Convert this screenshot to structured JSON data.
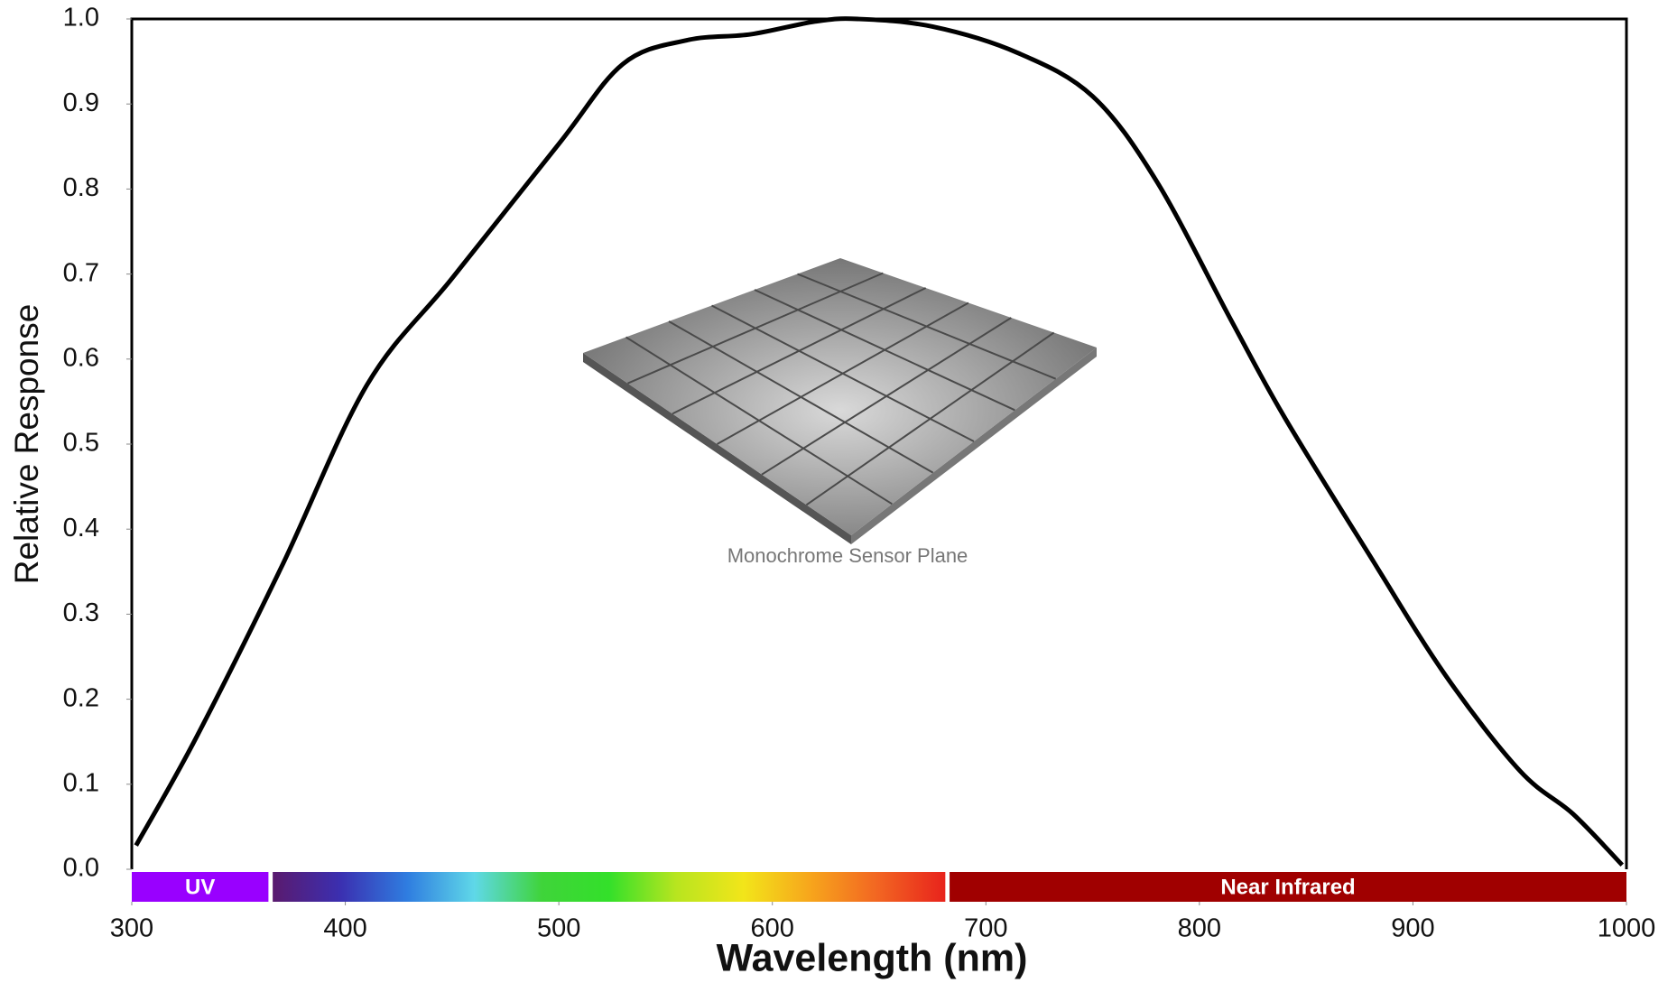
{
  "chart_data": {
    "type": "line",
    "x_label": "Wavelength (nm)",
    "y_label": "Relative Response",
    "annotation": "Monochrome Sensor Plane",
    "x": [
      302,
      330,
      370,
      410,
      450,
      500,
      530,
      560,
      590,
      620,
      640,
      675,
      715,
      750,
      780,
      815,
      840,
      880,
      915,
      950,
      975,
      998
    ],
    "series": [
      {
        "color": "#000000",
        "values": [
          0.028,
          0.154,
          0.355,
          0.569,
          0.695,
          0.853,
          0.947,
          0.975,
          0.982,
          0.997,
          1.0,
          0.991,
          0.96,
          0.909,
          0.809,
          0.645,
          0.531,
          0.368,
          0.229,
          0.116,
          0.065,
          0.005
        ]
      }
    ],
    "xlim": [
      300,
      1000
    ],
    "ylim": [
      0,
      1
    ],
    "xticks": [
      300,
      400,
      500,
      600,
      700,
      800,
      900,
      1000
    ],
    "yticks": [
      {
        "value": 0,
        "label": "0.0"
      },
      {
        "value": 0.1,
        "label": "0.1"
      },
      {
        "value": 0.2,
        "label": "0.2"
      },
      {
        "value": 0.3,
        "label": "0.3"
      },
      {
        "value": 0.4,
        "label": "0.4"
      },
      {
        "value": 0.5,
        "label": "0.5"
      },
      {
        "value": 0.6,
        "label": "0.6"
      },
      {
        "value": 0.7,
        "label": "0.7"
      },
      {
        "value": 0.8,
        "label": "0.8"
      },
      {
        "value": 0.9,
        "label": "0.9"
      },
      {
        "value": 1,
        "label": "1.0"
      }
    ],
    "grid": false,
    "bands": [
      {
        "label": "UV",
        "start": 300,
        "end": 364,
        "color": "#9900ff"
      },
      {
        "start": 366,
        "end": 681,
        "colors": [
          "#5a1a6e",
          "#3b2fb0",
          "#2f7de0",
          "#5fd8e8",
          "#3fd43a",
          "#33e02a",
          "#b8e51f",
          "#f2e51a",
          "#f7a51c",
          "#f26522",
          "#e8231c"
        ]
      },
      {
        "label": "Near Infrared",
        "start": 683,
        "end": 1000,
        "color": "#a00000"
      }
    ]
  }
}
